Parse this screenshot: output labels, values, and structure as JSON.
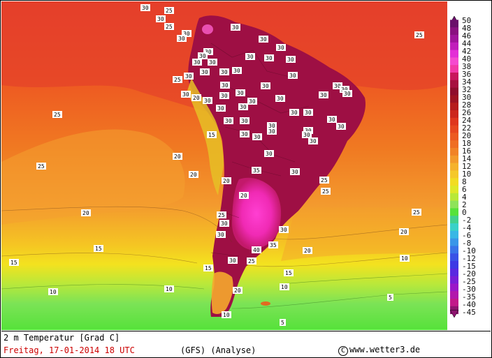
{
  "map": {
    "title": "2 m Temperatur [Grad C]",
    "date_time": "Freitag, 17-01-2014  18 UTC",
    "model": "(GFS)  (Analyse)",
    "copyright_symbol": "C",
    "copyright_text": "www.wetter3.de",
    "colors": {
      "hot_magenta": "#ff33cc",
      "deep_maroon": "#8b0a3c",
      "red": "#d9362a",
      "orange": "#ee6a20",
      "light_orange": "#f39a2e",
      "yellow": "#f5d21f",
      "green": "#8ee35a",
      "bright_green": "#56e23a",
      "land_lines": "#111111"
    },
    "legend_ticks": [
      "50",
      "48",
      "46",
      "44",
      "42",
      "40",
      "38",
      "36",
      "34",
      "32",
      "30",
      "28",
      "26",
      "24",
      "22",
      "20",
      "18",
      "16",
      "14",
      "12",
      "10",
      "8",
      "6",
      "4",
      "2",
      "0",
      "-2",
      "-4",
      "-6",
      "-8",
      "-10",
      "-12",
      "-15",
      "-20",
      "-25",
      "-30",
      "-35",
      "-40",
      "-45"
    ],
    "labels": {
      "l1": "30",
      "l2": "25",
      "l3": "30",
      "l4": "25",
      "l5": "30",
      "l6": "30",
      "l7": "25",
      "l8": "30",
      "l9": "30",
      "l10": "30",
      "l11": "30",
      "l12": "30",
      "l13": "30",
      "l14": "30",
      "l15": "30",
      "l16": "30",
      "l17": "30",
      "l18": "30",
      "l19": "30",
      "l20": "30",
      "l21": "30",
      "l22": "30",
      "l23": "30",
      "l24": "30",
      "l25": "30",
      "l26": "25",
      "l27": "25",
      "l28": "30",
      "l29": "20",
      "l30": "30",
      "l31": "30",
      "l32": "30",
      "l33": "30",
      "l34": "30",
      "l35": "30",
      "l36": "30",
      "l37": "30",
      "l38": "30",
      "l39": "15",
      "l40": "25",
      "l41": "30",
      "l42": "30",
      "l43": "30",
      "l44": "30",
      "l45": "30",
      "l46": "30",
      "l47": "30",
      "l48": "30",
      "l49": "30",
      "l50": "20",
      "l51": "30",
      "l52": "30",
      "l53": "30",
      "l54": "35",
      "l55": "20",
      "l56": "25",
      "l57": "20",
      "l58": "25",
      "l59": "25",
      "l60": "20",
      "l61": "20",
      "l62": "30",
      "l63": "30",
      "l64": "20",
      "l65": "15",
      "l66": "40",
      "l67": "35",
      "l68": "20",
      "l69": "15",
      "l70": "30",
      "l71": "25",
      "l72": "15",
      "l73": "15",
      "l74": "10",
      "l75": "10",
      "l76": "10",
      "l77": "10",
      "l78": "20",
      "l79": "5",
      "l80": "5",
      "l81": "10",
      "l82": "25",
      "l83": "30",
      "l84": "30",
      "l85": "30",
      "l86": "30",
      "l87": "30"
    }
  }
}
